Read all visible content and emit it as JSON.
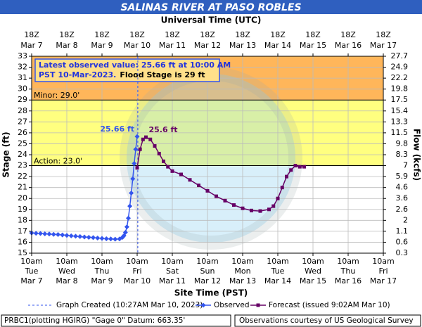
{
  "chart_data": {
    "type": "line",
    "title": "SALINAS RIVER AT PASO ROBLES",
    "top_axis_label": "Universal Time (UTC)",
    "x_label": "Site Time (PST)",
    "y_label": "Stage (ft)",
    "y2_label": "Flow (kcfs)",
    "xlim": [
      "2023-03-07T10:00",
      "2023-03-17T10:00"
    ],
    "xticks": [
      {
        "value": "2023-03-07T10:00",
        "label": "10am",
        "day": "Tue",
        "date": "Mar 7"
      },
      {
        "value": "2023-03-08T10:00",
        "label": "10am",
        "day": "Wed",
        "date": "Mar 8"
      },
      {
        "value": "2023-03-09T10:00",
        "label": "10am",
        "day": "Thu",
        "date": "Mar 9"
      },
      {
        "value": "2023-03-10T10:00",
        "label": "10am",
        "day": "Fri",
        "date": "Mar 10"
      },
      {
        "value": "2023-03-11T10:00",
        "label": "10am",
        "day": "Sat",
        "date": "Mar 11"
      },
      {
        "value": "2023-03-12T10:00",
        "label": "10am",
        "day": "Sun",
        "date": "Mar 12"
      },
      {
        "value": "2023-03-13T10:00",
        "label": "10am",
        "day": "Mon",
        "date": "Mar 13"
      },
      {
        "value": "2023-03-14T10:00",
        "label": "10am",
        "day": "Tue",
        "date": "Mar 14"
      },
      {
        "value": "2023-03-15T10:00",
        "label": "10am",
        "day": "Wed",
        "date": "Mar 15"
      },
      {
        "value": "2023-03-16T10:00",
        "label": "10am",
        "day": "Thu",
        "date": "Mar 16"
      },
      {
        "value": "2023-03-17T10:00",
        "label": "10am",
        "day": "Fri",
        "date": "Mar 17"
      }
    ],
    "x2ticks": [
      {
        "value": "2023-03-07T10:00",
        "label": "18Z",
        "date": "Mar 7"
      },
      {
        "value": "2023-03-08T10:00",
        "label": "18Z",
        "date": "Mar 8"
      },
      {
        "value": "2023-03-09T10:00",
        "label": "18Z",
        "date": "Mar 9"
      },
      {
        "value": "2023-03-10T10:00",
        "label": "18Z",
        "date": "Mar 10"
      },
      {
        "value": "2023-03-11T10:00",
        "label": "18Z",
        "date": "Mar 11"
      },
      {
        "value": "2023-03-12T10:00",
        "label": "18Z",
        "date": "Mar 12"
      },
      {
        "value": "2023-03-13T10:00",
        "label": "18Z",
        "date": "Mar 13"
      },
      {
        "value": "2023-03-14T10:00",
        "label": "18Z",
        "date": "Mar 14"
      },
      {
        "value": "2023-03-15T10:00",
        "label": "18Z",
        "date": "Mar 15"
      },
      {
        "value": "2023-03-16T10:00",
        "label": "18Z",
        "date": "Mar 16"
      },
      {
        "value": "2023-03-17T10:00",
        "label": "18Z",
        "date": "Mar 17"
      }
    ],
    "ylim": [
      15,
      33
    ],
    "yticks": [
      15,
      16,
      17,
      18,
      19,
      20,
      21,
      22,
      23,
      24,
      25,
      26,
      27,
      28,
      29,
      30,
      31,
      32,
      33
    ],
    "y2ticks": [
      0.3,
      0.6,
      1.1,
      2.0,
      2.6,
      3.6,
      4.6,
      5.9,
      7.0,
      8.3,
      9.8,
      11.5,
      13.3,
      15.4,
      17.5,
      19.8,
      22.2,
      24.9,
      27.7
    ],
    "grid": true,
    "thresholds": [
      {
        "label": "Action: 23.0'",
        "value": 23,
        "color": "#ffff80"
      },
      {
        "label": "Minor: 29.0'",
        "value": 29,
        "color": "#ffb65a"
      }
    ],
    "info": {
      "line1": "Latest observed value: 25.66 ft at 10:00 AM",
      "line2": "PST 10-Mar-2023.",
      "flood": "Flood Stage is 29 ft"
    },
    "graph_created": {
      "x": "2023-03-10T10:27",
      "label": "Graph Created (10:27AM Mar 10, 2023)"
    },
    "series": [
      {
        "name": "Observed",
        "color": "#3355ee",
        "marker": "diamond",
        "x": [
          "2023-03-07T10:00",
          "2023-03-07T13:00",
          "2023-03-07T16:00",
          "2023-03-07T19:00",
          "2023-03-07T22:00",
          "2023-03-08T01:00",
          "2023-03-08T04:00",
          "2023-03-08T07:00",
          "2023-03-08T10:00",
          "2023-03-08T13:00",
          "2023-03-08T16:00",
          "2023-03-08T19:00",
          "2023-03-08T22:00",
          "2023-03-09T01:00",
          "2023-03-09T04:00",
          "2023-03-09T07:00",
          "2023-03-09T10:00",
          "2023-03-09T13:00",
          "2023-03-09T16:00",
          "2023-03-09T19:00",
          "2023-03-09T22:00",
          "2023-03-10T00:00",
          "2023-03-10T01:00",
          "2023-03-10T02:00",
          "2023-03-10T03:00",
          "2023-03-10T04:00",
          "2023-03-10T05:00",
          "2023-03-10T06:00",
          "2023-03-10T07:00",
          "2023-03-10T08:00",
          "2023-03-10T09:00",
          "2023-03-10T10:00"
        ],
        "values": [
          16.85,
          16.82,
          16.8,
          16.77,
          16.75,
          16.72,
          16.7,
          16.66,
          16.62,
          16.58,
          16.55,
          16.52,
          16.48,
          16.45,
          16.42,
          16.38,
          16.35,
          16.32,
          16.3,
          16.28,
          16.3,
          16.45,
          16.6,
          16.9,
          17.4,
          18.2,
          19.3,
          20.5,
          21.8,
          23.2,
          24.5,
          25.66
        ],
        "value_labels": [
          null,
          null,
          null,
          null,
          null,
          null,
          null,
          null,
          null,
          null,
          null,
          null,
          null,
          null,
          null,
          null,
          null,
          null,
          null,
          null,
          null,
          null,
          null,
          null,
          null,
          null,
          null,
          null,
          null,
          null,
          null,
          "25.66 ft"
        ]
      },
      {
        "name": "Forecast (issued 9:02AM Mar 10)",
        "color": "#660066",
        "marker": "square",
        "x": [
          "2023-03-10T10:00",
          "2023-03-10T12:00",
          "2023-03-10T14:00",
          "2023-03-10T16:00",
          "2023-03-10T19:00",
          "2023-03-10T22:00",
          "2023-03-11T01:00",
          "2023-03-11T04:00",
          "2023-03-11T07:00",
          "2023-03-11T10:00",
          "2023-03-11T16:00",
          "2023-03-11T22:00",
          "2023-03-12T04:00",
          "2023-03-12T10:00",
          "2023-03-12T16:00",
          "2023-03-12T22:00",
          "2023-03-13T04:00",
          "2023-03-13T10:00",
          "2023-03-13T16:00",
          "2023-03-13T22:00",
          "2023-03-14T04:00",
          "2023-03-14T07:00",
          "2023-03-14T10:00",
          "2023-03-14T13:00",
          "2023-03-14T16:00",
          "2023-03-14T19:00",
          "2023-03-14T22:00",
          "2023-03-15T01:00",
          "2023-03-15T04:00"
        ],
        "values": [
          22.8,
          24.5,
          25.4,
          25.6,
          25.4,
          24.8,
          24.1,
          23.4,
          22.9,
          22.5,
          22.2,
          21.7,
          21.2,
          20.7,
          20.2,
          19.8,
          19.4,
          19.1,
          18.9,
          18.85,
          19.0,
          19.3,
          20.0,
          21.0,
          22.0,
          22.6,
          23.0,
          22.9,
          22.9
        ],
        "value_labels": [
          null,
          null,
          null,
          "25.6 ft",
          null,
          null,
          null,
          null,
          null,
          null,
          null,
          null,
          null,
          null,
          null,
          null,
          null,
          null,
          null,
          null,
          null,
          null,
          null,
          null,
          null,
          null,
          null,
          null,
          null
        ]
      }
    ],
    "footer_left": "PRBC1(plotting HGIRG) \"Gage 0\" Datum: 663.35'",
    "footer_right": "Observations courtesy of US Geological Survey"
  }
}
